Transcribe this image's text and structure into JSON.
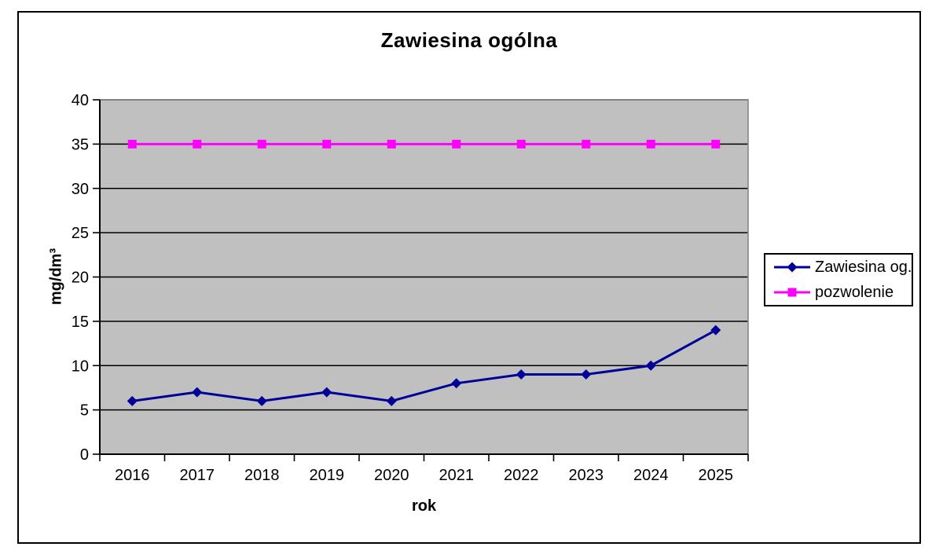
{
  "chart_data": {
    "type": "line",
    "title": "Zawiesina ogólna",
    "xlabel": "rok",
    "ylabel": "mg/dm³",
    "categories": [
      "2016",
      "2017",
      "2018",
      "2019",
      "2020",
      "2021",
      "2022",
      "2023",
      "2024",
      "2025"
    ],
    "series": [
      {
        "name": "Zawiesina og.",
        "values": [
          6,
          7,
          6,
          7,
          6,
          8,
          9,
          9,
          10,
          14
        ],
        "color": "#000099",
        "marker": "diamond"
      },
      {
        "name": "pozwolenie",
        "values": [
          35,
          35,
          35,
          35,
          35,
          35,
          35,
          35,
          35,
          35
        ],
        "color": "#FF00FF",
        "marker": "square"
      }
    ],
    "ylim": [
      0,
      40
    ],
    "ytick_step": 5,
    "grid": true,
    "legend_position": "right",
    "colors": {
      "plot_bg": "#C0C0C0",
      "gridline": "#000000",
      "plot_border": "#878787",
      "axis": "#000000",
      "text": "#000000",
      "legend_bg": "#FFFFFF",
      "legend_border": "#000000",
      "frame_border": "#000000"
    }
  }
}
